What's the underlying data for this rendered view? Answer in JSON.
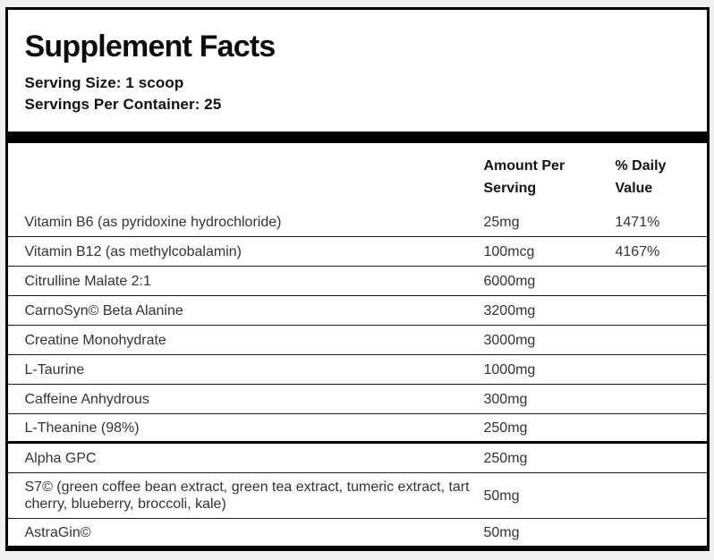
{
  "page": {
    "background_color": "#edeff1",
    "panel_background": "#ffffff",
    "border_color": "#000000",
    "text_color": "#333333"
  },
  "header": {
    "title": "Supplement Facts",
    "serving_size": "Serving Size: 1 scoop",
    "servings_per_container": "Servings Per Container: 25"
  },
  "table": {
    "columns": {
      "amount_label": "Amount Per Serving",
      "daily_value_label": "% Daily Value"
    },
    "rows": [
      {
        "name": "Vitamin B6 (as pyridoxine hydrochloride)",
        "amount": "25mg",
        "daily_value": "1471%"
      },
      {
        "name": "Vitamin B12 (as methylcobalamin)",
        "amount": "100mcg",
        "daily_value": "4167%"
      },
      {
        "name": "Citrulline Malate 2:1",
        "amount": "6000mg",
        "daily_value": ""
      },
      {
        "name": "CarnoSyn© Beta Alanine",
        "amount": "3200mg",
        "daily_value": ""
      },
      {
        "name": "Creatine Monohydrate",
        "amount": "3000mg",
        "daily_value": ""
      },
      {
        "name": "L-Taurine",
        "amount": "1000mg",
        "daily_value": ""
      },
      {
        "name": "Caffeine Anhydrous",
        "amount": "300mg",
        "daily_value": ""
      },
      {
        "name": "L-Theanine (98%)",
        "amount": "250mg",
        "daily_value": ""
      },
      {
        "name": "Alpha GPC",
        "amount": "250mg",
        "daily_value": ""
      },
      {
        "name": "S7© (green coffee bean extract, green tea extract, tumeric extract, tart cherry, blueberry, broccoli, kale)",
        "amount": "50mg",
        "daily_value": ""
      },
      {
        "name": "AstraGin©",
        "amount": "50mg",
        "daily_value": ""
      }
    ]
  }
}
